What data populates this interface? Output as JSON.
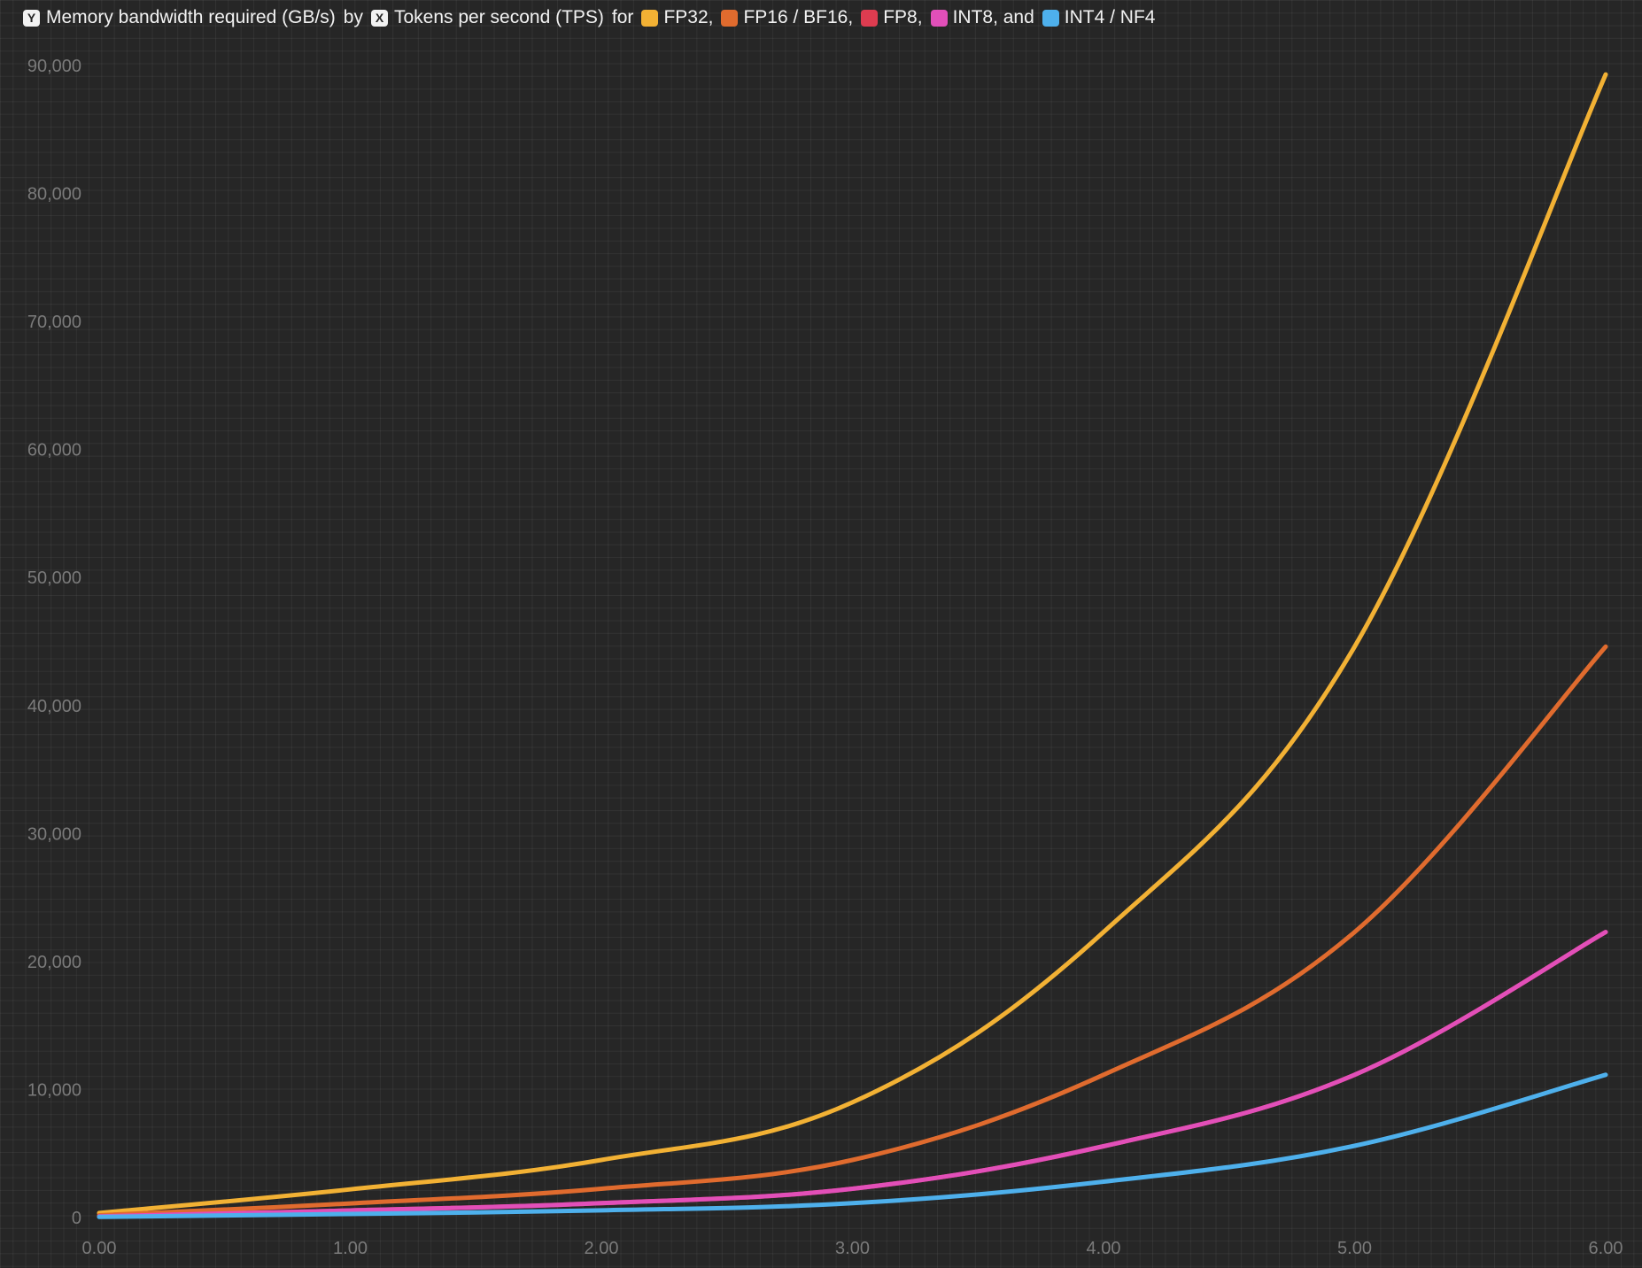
{
  "header": {
    "y_badge": "Y",
    "y_label": "Memory bandwidth required (GB/s)",
    "by_word": "by",
    "x_badge": "X",
    "x_label": "Tokens per second (TPS)",
    "for_word": "for",
    "legend": [
      {
        "label": "FP32,",
        "color": "#f2b134"
      },
      {
        "label": "FP16 / BF16,",
        "color": "#e06b2e"
      },
      {
        "label": "FP8,",
        "color": "#de3c50"
      },
      {
        "label": "INT8, and",
        "color": "#e24fb9"
      },
      {
        "label": "INT4 / NF4",
        "color": "#4eb0ec"
      }
    ]
  },
  "chart_data": {
    "type": "line",
    "title": "",
    "xlabel": "Tokens per second (TPS)",
    "ylabel": "Memory bandwidth required (GB/s)",
    "xlim": [
      0,
      6
    ],
    "ylim": [
      0,
      90000
    ],
    "x_ticks": [
      "0.00",
      "1.00",
      "2.00",
      "3.00",
      "4.00",
      "5.00",
      "6.00"
    ],
    "y_ticks": [
      "0",
      "10,000",
      "20,000",
      "30,000",
      "40,000",
      "50,000",
      "60,000",
      "70,000",
      "80,000",
      "90,000"
    ],
    "x": [
      0,
      1,
      2,
      3,
      4,
      5,
      6
    ],
    "series": [
      {
        "name": "FP32",
        "color": "#f2b134",
        "values": [
          350,
          2200,
          4500,
          9000,
          22300,
          44600,
          89300
        ]
      },
      {
        "name": "FP16 / BF16",
        "color": "#e06b2e",
        "values": [
          175,
          1100,
          2250,
          4500,
          11150,
          22300,
          44600
        ]
      },
      {
        "name": "FP8",
        "color": "#de3c50",
        "values": [
          90,
          550,
          1120,
          2250,
          5570,
          11150,
          22300
        ]
      },
      {
        "name": "INT8",
        "color": "#e24fb9",
        "values": [
          90,
          550,
          1120,
          2250,
          5570,
          11150,
          22300
        ]
      },
      {
        "name": "INT4 / NF4",
        "color": "#4eb0ec",
        "values": [
          45,
          280,
          560,
          1120,
          2800,
          5600,
          11150
        ]
      }
    ],
    "grid": true,
    "legend_position": "top"
  }
}
